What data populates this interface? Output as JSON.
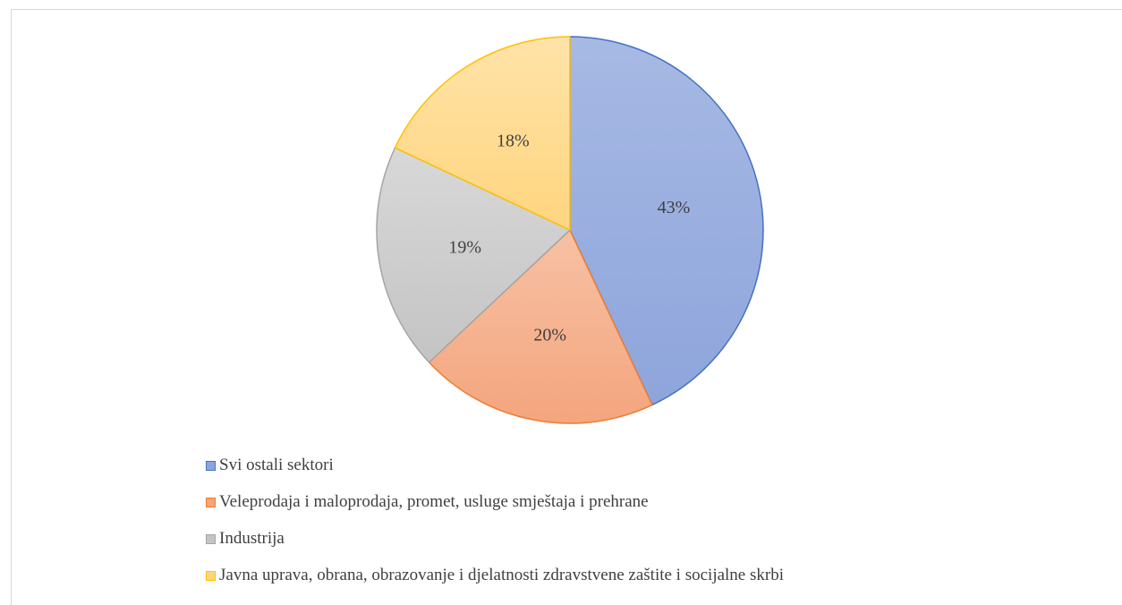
{
  "chart_data": {
    "type": "pie",
    "title": "",
    "legend_position": "bottom-left",
    "slices": [
      {
        "label": "Svi ostali sektori",
        "value": 43,
        "display": "43%",
        "fill": "#8ea5dc",
        "fill_light": "#a7b9e4",
        "stroke": "#4472c4"
      },
      {
        "label": "Veleprodaja i maloprodaja, promet, usluge smještaja i prehrane",
        "value": 20,
        "display": "20%",
        "fill": "#f4a57e",
        "fill_light": "#f7c1a4",
        "stroke": "#ed7d31"
      },
      {
        "label": "Industrija",
        "value": 19,
        "display": "19%",
        "fill": "#c4c4c4",
        "fill_light": "#d8d8d8",
        "stroke": "#a5a5a5"
      },
      {
        "label": "Javna uprava, obrana, obrazovanje i djelatnosti zdravstvene zaštite i socijalne skrbi",
        "value": 18,
        "display": "18%",
        "fill": "#ffd57f",
        "fill_light": "#ffe3a8",
        "stroke": "#ffc000"
      }
    ]
  }
}
